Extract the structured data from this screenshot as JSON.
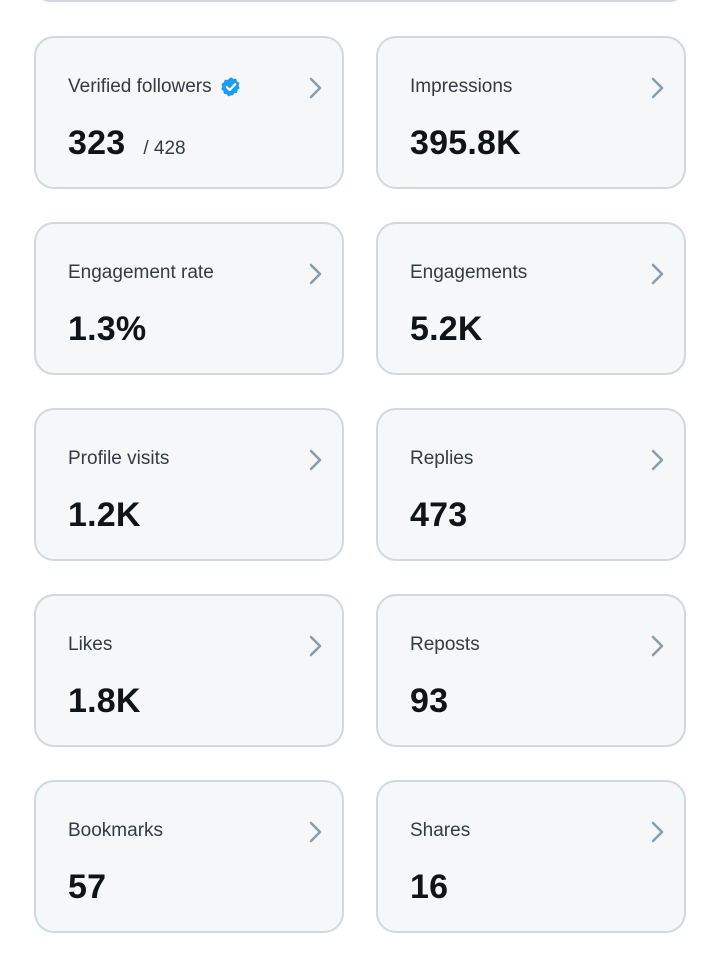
{
  "metrics": [
    {
      "label": "Verified followers",
      "value": "323",
      "sub": "/ 428",
      "verified": true
    },
    {
      "label": "Impressions",
      "value": "395.8K"
    },
    {
      "label": "Engagement rate",
      "value": "1.3%"
    },
    {
      "label": "Engagements",
      "value": "5.2K"
    },
    {
      "label": "Profile visits",
      "value": "1.2K"
    },
    {
      "label": "Replies",
      "value": "473"
    },
    {
      "label": "Likes",
      "value": "1.8K"
    },
    {
      "label": "Reposts",
      "value": "93"
    },
    {
      "label": "Bookmarks",
      "value": "57"
    },
    {
      "label": "Shares",
      "value": "16"
    }
  ],
  "icons": {
    "chevron": "chevron-right-icon",
    "verified": "verified-badge-icon"
  },
  "colors": {
    "verified_blue": "#1d9bf0",
    "chevron": "#8a9eab",
    "card_border": "#cfd9de",
    "card_bg": "#f5f7f8"
  }
}
